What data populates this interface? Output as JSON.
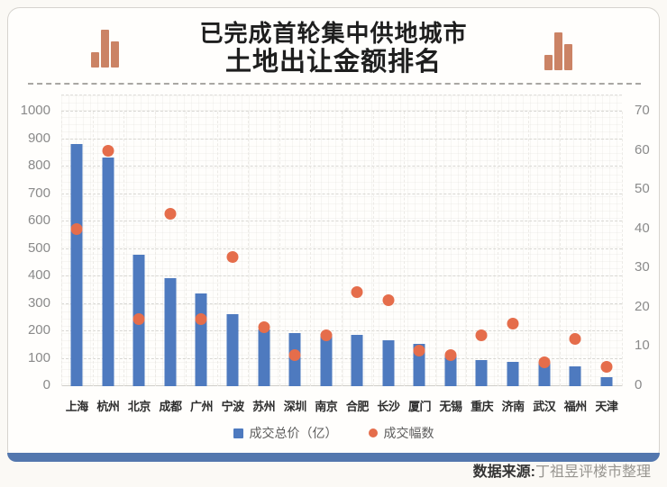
{
  "header": {
    "title_line1": "已完成首轮集中供地城市",
    "title_line2": "土地出让金额排名"
  },
  "colors": {
    "bar": "#4e7abf",
    "dot": "#e56d4b",
    "header_icon": "#cb8365",
    "card_bottom_accent": "#5377ae",
    "background": "#fbf9f5"
  },
  "chart_data": {
    "type": "bar+scatter combo",
    "categories": [
      "上海",
      "杭州",
      "北京",
      "成都",
      "广州",
      "宁波",
      "苏州",
      "深圳",
      "南京",
      "合肥",
      "长沙",
      "厦门",
      "无锡",
      "重庆",
      "济南",
      "武汉",
      "福州",
      "天津"
    ],
    "series": [
      {
        "name": "成交总价（亿）",
        "type": "bar",
        "axis": "left",
        "values": [
          881,
          834,
          480,
          392,
          337,
          263,
          208,
          195,
          190,
          186,
          168,
          154,
          110,
          95,
          88,
          85,
          71,
          33
        ]
      },
      {
        "name": "成交幅数",
        "type": "scatter",
        "axis": "right",
        "values": [
          40,
          60,
          17,
          44,
          17,
          33,
          15,
          8,
          13,
          24,
          22,
          9,
          8,
          13,
          16,
          6,
          12,
          5
        ]
      }
    ],
    "left_axis": {
      "min": 0,
      "max": 1000,
      "step": 100,
      "ticks": [
        "0",
        "100",
        "200",
        "300",
        "400",
        "500",
        "600",
        "700",
        "800",
        "900",
        "1000"
      ]
    },
    "right_axis": {
      "min": 0,
      "max": 70,
      "step": 10,
      "ticks": [
        "0",
        "10",
        "20",
        "30",
        "40",
        "50",
        "60",
        "70"
      ]
    },
    "grid": "dashed horizontal + faint vertical",
    "legend_position": "bottom-center"
  },
  "footer": {
    "source_label": "数据来源:",
    "source_value": "丁祖昱评楼市整理"
  }
}
